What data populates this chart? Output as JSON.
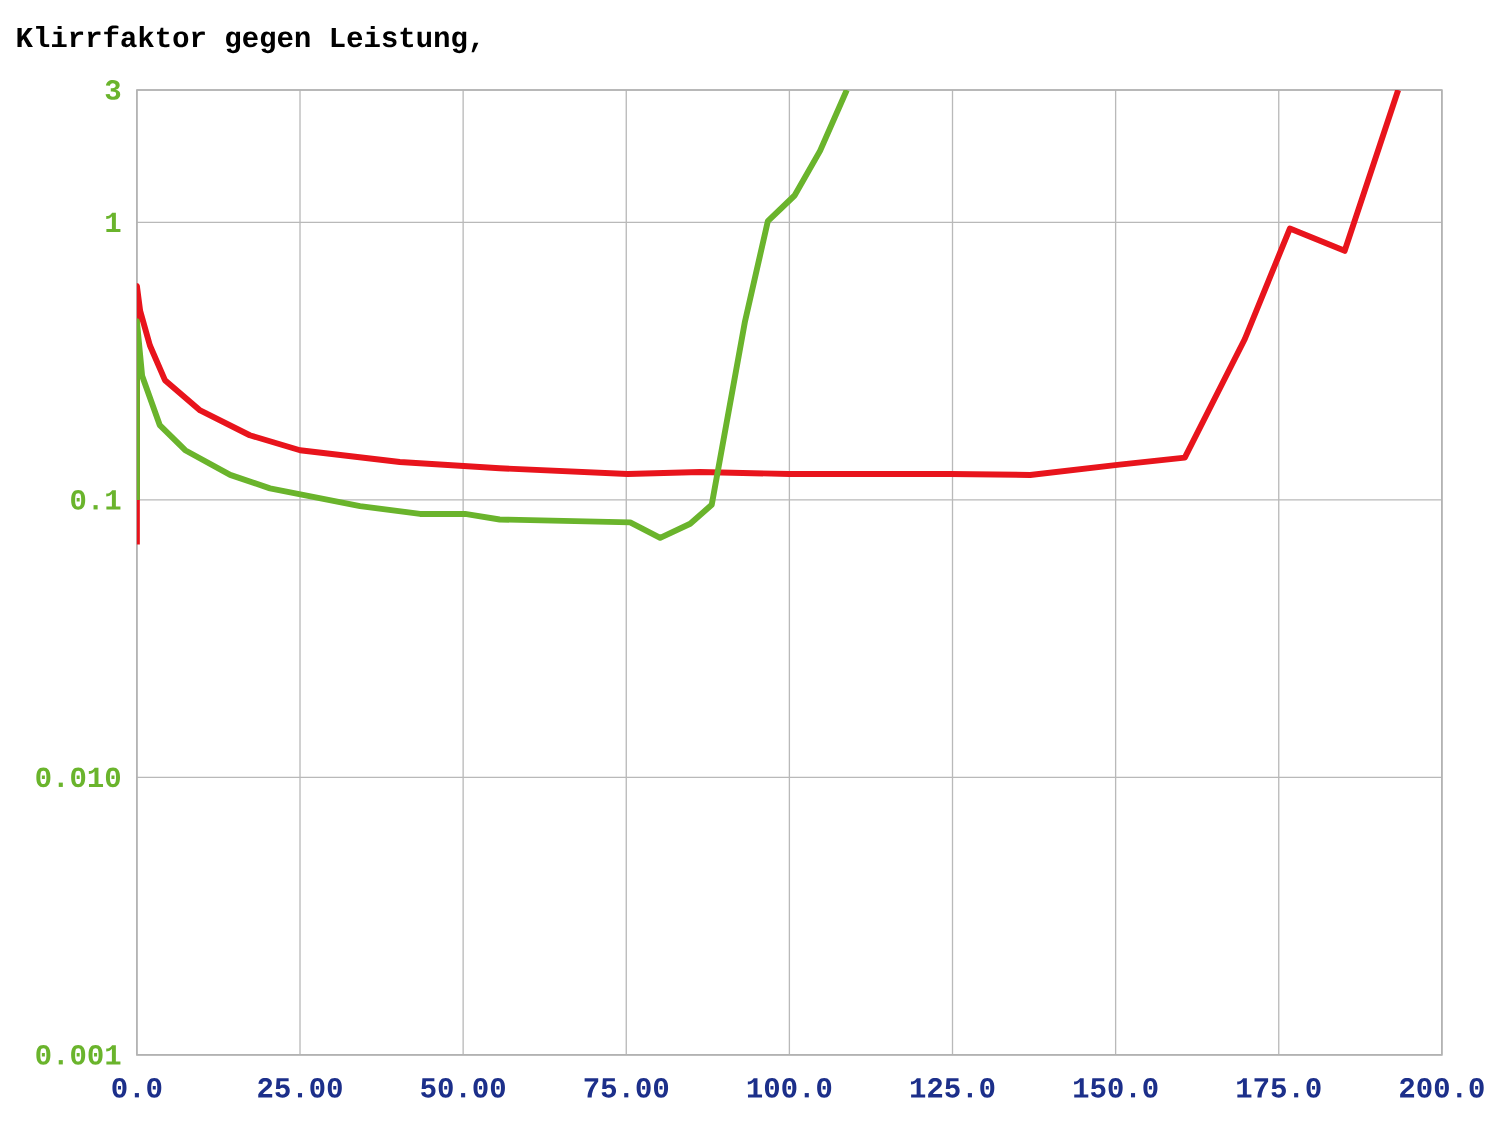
{
  "chart_data": {
    "type": "line",
    "title": "Klirrfaktor gegen Leistung,",
    "xlim": [
      0,
      200
    ],
    "ylim": [
      0.001,
      3
    ],
    "log": "y",
    "grid": true,
    "xticks": [
      {
        "value": 0,
        "label": "0.0"
      },
      {
        "value": 25,
        "label": "25.00"
      },
      {
        "value": 50,
        "label": "50.00"
      },
      {
        "value": 75,
        "label": "75.00"
      },
      {
        "value": 100,
        "label": "100.0"
      },
      {
        "value": 125,
        "label": "125.0"
      },
      {
        "value": 150,
        "label": "150.0"
      },
      {
        "value": 175,
        "label": "175.0"
      },
      {
        "value": 200,
        "label": "200.0"
      }
    ],
    "yticks": [
      0.001,
      {
        "value": 0.01,
        "label": "0.010"
      },
      0.1,
      1,
      3
    ],
    "series": [
      {
        "color": "#e8141c",
        "x": [
          0,
          0,
          0.5,
          2,
          4.3,
          9.7,
          17.3,
          25,
          40.3,
          55.6,
          75.2,
          86.3,
          100,
          124.6,
          136.9,
          150.6,
          160.6,
          169.8,
          176.7,
          185.1,
          193.3
        ],
        "values": [
          0.069,
          0.59,
          0.48,
          0.36,
          0.27,
          0.21,
          0.171,
          0.151,
          0.137,
          0.13,
          0.124,
          0.126,
          0.124,
          0.124,
          0.123,
          0.134,
          0.142,
          0.38,
          0.95,
          0.79,
          3.0
        ]
      },
      {
        "color": "#6ab42c",
        "x": [
          0,
          0,
          0.8,
          3.5,
          7.4,
          14.3,
          20.4,
          34.2,
          43.4,
          50.3,
          55.6,
          75.6,
          80.2,
          84.8,
          88.1,
          93.2,
          96.7,
          100.8,
          104.7,
          108.8
        ],
        "values": [
          0.1,
          0.44,
          0.28,
          0.186,
          0.151,
          0.123,
          0.11,
          0.095,
          0.089,
          0.089,
          0.085,
          0.083,
          0.073,
          0.082,
          0.096,
          0.44,
          1.01,
          1.25,
          1.81,
          3.0
        ]
      }
    ]
  }
}
